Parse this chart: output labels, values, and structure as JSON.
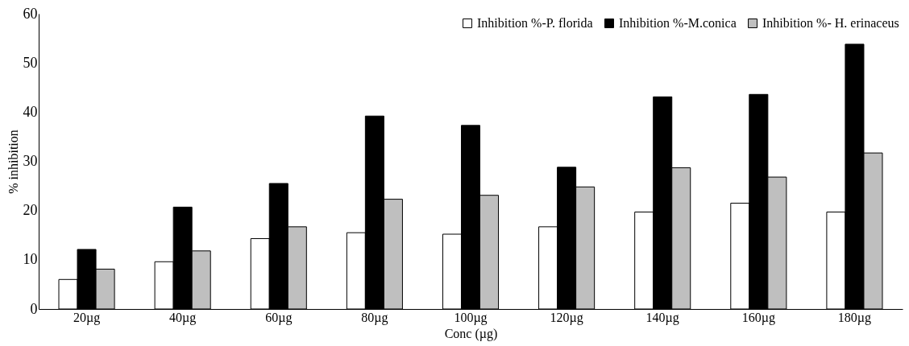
{
  "chart_data": {
    "type": "bar",
    "xlabel": "Conc (µg)",
    "ylabel": "% inhibition",
    "categories": [
      "20µg",
      "40µg",
      "60µg",
      "80µg",
      "100µg",
      "120µg",
      "140µg",
      "160µg",
      "180µg"
    ],
    "series": [
      {
        "name": "Inhibition %-P. florida",
        "color": "#ffffff",
        "values": [
          6.0,
          9.6,
          14.3,
          15.5,
          15.2,
          16.7,
          19.7,
          21.5,
          19.7
        ]
      },
      {
        "name": "Inhibition %-M.conica",
        "color": "#000000",
        "values": [
          12.1,
          20.7,
          25.5,
          39.2,
          37.3,
          28.8,
          43.1,
          43.6,
          53.8
        ]
      },
      {
        "name": "Inhibition %- H. erinaceus",
        "color": "#bfbfbf",
        "values": [
          8.1,
          11.8,
          16.7,
          22.3,
          23.1,
          24.8,
          28.7,
          26.8,
          31.7
        ]
      }
    ],
    "ylim": [
      0,
      60
    ],
    "yticks": [
      0,
      10,
      20,
      30,
      40,
      50,
      60
    ],
    "grid": false,
    "legend": "top right"
  }
}
